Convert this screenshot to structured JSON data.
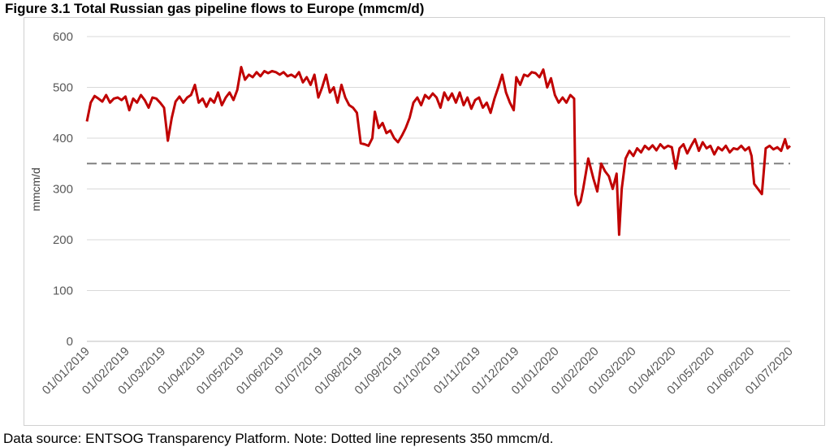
{
  "figure": {
    "title": "Figure 3.1 Total Russian gas pipeline flows to Europe (mmcm/d)",
    "footer": "Data source: ENTSOG Transparency Platform. Note: Dotted line represents 350 mmcm/d."
  },
  "chart_data": {
    "type": "line",
    "title": "Figure 3.1 Total Russian gas pipeline flows to Europe (mmcm/d)",
    "xlabel": "",
    "ylabel": "mmcm/d",
    "ylim": [
      0,
      600
    ],
    "yticks": [
      0,
      100,
      200,
      300,
      400,
      500,
      600
    ],
    "xlim": [
      "2019-01-01",
      "2020-07-01"
    ],
    "xtick_labels": [
      "01/01/2019",
      "01/02/2019",
      "01/03/2019",
      "01/04/2019",
      "01/05/2019",
      "01/06/2019",
      "01/07/2019",
      "01/08/2019",
      "01/09/2019",
      "01/10/2019",
      "01/11/2019",
      "01/12/2019",
      "01/01/2020",
      "01/02/2020",
      "01/03/2020",
      "01/04/2020",
      "01/05/2020",
      "01/06/2020",
      "01/07/2020"
    ],
    "grid": true,
    "line_color": "#c00000",
    "reference_line": {
      "value": 350,
      "style": "dashed",
      "color": "#808080"
    },
    "series": [
      {
        "values": [
          [
            "2019-01-01",
            433
          ],
          [
            "2019-01-04",
            470
          ],
          [
            "2019-01-07",
            483
          ],
          [
            "2019-01-10",
            478
          ],
          [
            "2019-01-13",
            472
          ],
          [
            "2019-01-16",
            485
          ],
          [
            "2019-01-19",
            470
          ],
          [
            "2019-01-22",
            478
          ],
          [
            "2019-01-25",
            480
          ],
          [
            "2019-01-28",
            475
          ],
          [
            "2019-01-31",
            482
          ],
          [
            "2019-02-03",
            455
          ],
          [
            "2019-02-06",
            478
          ],
          [
            "2019-02-09",
            470
          ],
          [
            "2019-02-12",
            485
          ],
          [
            "2019-02-15",
            475
          ],
          [
            "2019-02-18",
            460
          ],
          [
            "2019-02-21",
            480
          ],
          [
            "2019-02-24",
            478
          ],
          [
            "2019-02-27",
            470
          ],
          [
            "2019-03-02",
            460
          ],
          [
            "2019-03-05",
            395
          ],
          [
            "2019-03-08",
            440
          ],
          [
            "2019-03-11",
            472
          ],
          [
            "2019-03-14",
            482
          ],
          [
            "2019-03-17",
            470
          ],
          [
            "2019-03-20",
            480
          ],
          [
            "2019-03-23",
            485
          ],
          [
            "2019-03-26",
            505
          ],
          [
            "2019-03-29",
            470
          ],
          [
            "2019-04-01",
            478
          ],
          [
            "2019-04-04",
            462
          ],
          [
            "2019-04-07",
            478
          ],
          [
            "2019-04-10",
            470
          ],
          [
            "2019-04-13",
            490
          ],
          [
            "2019-04-16",
            465
          ],
          [
            "2019-04-19",
            480
          ],
          [
            "2019-04-22",
            490
          ],
          [
            "2019-04-25",
            475
          ],
          [
            "2019-04-28",
            495
          ],
          [
            "2019-05-01",
            540
          ],
          [
            "2019-05-04",
            515
          ],
          [
            "2019-05-07",
            525
          ],
          [
            "2019-05-10",
            520
          ],
          [
            "2019-05-13",
            530
          ],
          [
            "2019-05-16",
            522
          ],
          [
            "2019-05-19",
            532
          ],
          [
            "2019-05-22",
            528
          ],
          [
            "2019-05-25",
            532
          ],
          [
            "2019-05-28",
            530
          ],
          [
            "2019-05-31",
            525
          ],
          [
            "2019-06-03",
            530
          ],
          [
            "2019-06-06",
            522
          ],
          [
            "2019-06-09",
            525
          ],
          [
            "2019-06-12",
            520
          ],
          [
            "2019-06-15",
            530
          ],
          [
            "2019-06-18",
            510
          ],
          [
            "2019-06-21",
            520
          ],
          [
            "2019-06-24",
            505
          ],
          [
            "2019-06-27",
            525
          ],
          [
            "2019-06-30",
            480
          ],
          [
            "2019-07-03",
            500
          ],
          [
            "2019-07-06",
            525
          ],
          [
            "2019-07-09",
            490
          ],
          [
            "2019-07-12",
            500
          ],
          [
            "2019-07-15",
            470
          ],
          [
            "2019-07-18",
            505
          ],
          [
            "2019-07-21",
            480
          ],
          [
            "2019-07-24",
            465
          ],
          [
            "2019-07-27",
            460
          ],
          [
            "2019-07-30",
            450
          ],
          [
            "2019-08-02",
            390
          ],
          [
            "2019-08-05",
            388
          ],
          [
            "2019-08-08",
            385
          ],
          [
            "2019-08-11",
            400
          ],
          [
            "2019-08-13",
            452
          ],
          [
            "2019-08-16",
            420
          ],
          [
            "2019-08-19",
            430
          ],
          [
            "2019-08-22",
            410
          ],
          [
            "2019-08-25",
            415
          ],
          [
            "2019-08-28",
            400
          ],
          [
            "2019-08-31",
            392
          ],
          [
            "2019-09-03",
            405
          ],
          [
            "2019-09-06",
            420
          ],
          [
            "2019-09-09",
            440
          ],
          [
            "2019-09-12",
            470
          ],
          [
            "2019-09-15",
            480
          ],
          [
            "2019-09-18",
            465
          ],
          [
            "2019-09-21",
            485
          ],
          [
            "2019-09-24",
            478
          ],
          [
            "2019-09-27",
            488
          ],
          [
            "2019-09-30",
            480
          ],
          [
            "2019-10-03",
            460
          ],
          [
            "2019-10-06",
            490
          ],
          [
            "2019-10-09",
            475
          ],
          [
            "2019-10-12",
            488
          ],
          [
            "2019-10-15",
            470
          ],
          [
            "2019-10-18",
            490
          ],
          [
            "2019-10-21",
            465
          ],
          [
            "2019-10-24",
            480
          ],
          [
            "2019-10-27",
            458
          ],
          [
            "2019-10-30",
            475
          ],
          [
            "2019-11-02",
            480
          ],
          [
            "2019-11-05",
            460
          ],
          [
            "2019-11-08",
            470
          ],
          [
            "2019-11-11",
            450
          ],
          [
            "2019-11-14",
            478
          ],
          [
            "2019-11-17",
            500
          ],
          [
            "2019-11-20",
            525
          ],
          [
            "2019-11-23",
            490
          ],
          [
            "2019-11-26",
            470
          ],
          [
            "2019-11-29",
            455
          ],
          [
            "2019-12-01",
            520
          ],
          [
            "2019-12-04",
            505
          ],
          [
            "2019-12-07",
            525
          ],
          [
            "2019-12-10",
            522
          ],
          [
            "2019-12-13",
            530
          ],
          [
            "2019-12-16",
            528
          ],
          [
            "2019-12-19",
            520
          ],
          [
            "2019-12-22",
            535
          ],
          [
            "2019-12-25",
            500
          ],
          [
            "2019-12-28",
            518
          ],
          [
            "2019-12-31",
            485
          ],
          [
            "2020-01-03",
            470
          ],
          [
            "2020-01-06",
            480
          ],
          [
            "2020-01-09",
            470
          ],
          [
            "2020-01-12",
            485
          ],
          [
            "2020-01-15",
            478
          ],
          [
            "2020-01-16",
            290
          ],
          [
            "2020-01-18",
            268
          ],
          [
            "2020-01-20",
            275
          ],
          [
            "2020-01-22",
            300
          ],
          [
            "2020-01-24",
            330
          ],
          [
            "2020-01-26",
            360
          ],
          [
            "2020-01-28",
            340
          ],
          [
            "2020-01-30",
            320
          ],
          [
            "2020-02-02",
            295
          ],
          [
            "2020-02-05",
            350
          ],
          [
            "2020-02-08",
            335
          ],
          [
            "2020-02-11",
            325
          ],
          [
            "2020-02-14",
            300
          ],
          [
            "2020-02-17",
            330
          ],
          [
            "2020-02-19",
            210
          ],
          [
            "2020-02-21",
            300
          ],
          [
            "2020-02-24",
            360
          ],
          [
            "2020-02-27",
            375
          ],
          [
            "2020-03-01",
            365
          ],
          [
            "2020-03-04",
            380
          ],
          [
            "2020-03-07",
            372
          ],
          [
            "2020-03-10",
            385
          ],
          [
            "2020-03-13",
            378
          ],
          [
            "2020-03-16",
            386
          ],
          [
            "2020-03-19",
            376
          ],
          [
            "2020-03-22",
            388
          ],
          [
            "2020-03-25",
            380
          ],
          [
            "2020-03-28",
            385
          ],
          [
            "2020-03-31",
            382
          ],
          [
            "2020-04-03",
            340
          ],
          [
            "2020-04-06",
            380
          ],
          [
            "2020-04-09",
            388
          ],
          [
            "2020-04-12",
            370
          ],
          [
            "2020-04-15",
            385
          ],
          [
            "2020-04-18",
            398
          ],
          [
            "2020-04-21",
            375
          ],
          [
            "2020-04-24",
            392
          ],
          [
            "2020-04-27",
            380
          ],
          [
            "2020-04-30",
            385
          ],
          [
            "2020-05-03",
            368
          ],
          [
            "2020-05-06",
            382
          ],
          [
            "2020-05-09",
            376
          ],
          [
            "2020-05-12",
            385
          ],
          [
            "2020-05-15",
            372
          ],
          [
            "2020-05-18",
            380
          ],
          [
            "2020-05-21",
            378
          ],
          [
            "2020-05-24",
            385
          ],
          [
            "2020-05-27",
            376
          ],
          [
            "2020-05-30",
            382
          ],
          [
            "2020-06-01",
            365
          ],
          [
            "2020-06-03",
            310
          ],
          [
            "2020-06-06",
            300
          ],
          [
            "2020-06-09",
            290
          ],
          [
            "2020-06-12",
            380
          ],
          [
            "2020-06-15",
            385
          ],
          [
            "2020-06-18",
            378
          ],
          [
            "2020-06-21",
            382
          ],
          [
            "2020-06-24",
            375
          ],
          [
            "2020-06-27",
            398
          ],
          [
            "2020-06-29",
            380
          ],
          [
            "2020-07-01",
            385
          ]
        ]
      }
    ]
  }
}
